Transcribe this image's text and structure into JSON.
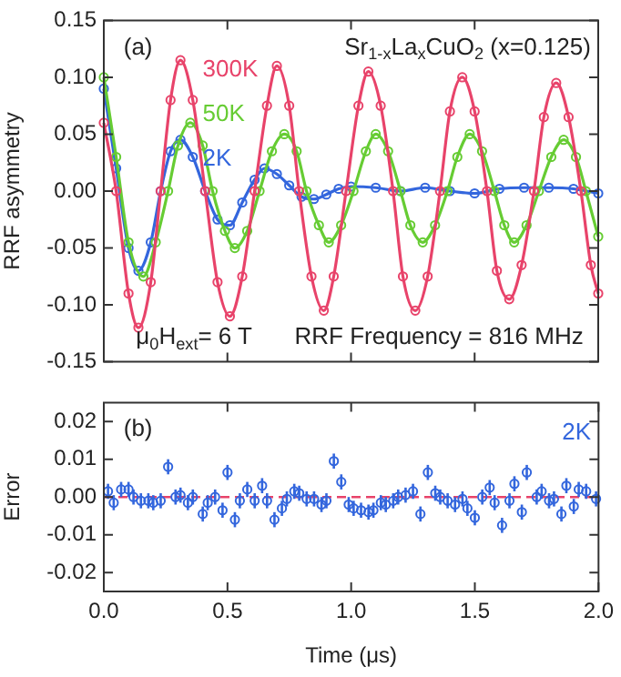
{
  "chart_data": [
    {
      "type": "line",
      "ylabel": "RRF asymmetry",
      "xlim": [
        0,
        2
      ],
      "xticks": [
        0,
        0.5,
        1,
        1.5,
        2
      ],
      "ylim": [
        -0.15,
        0.15
      ],
      "yticks": [
        {
          "value": -0.15,
          "label": "-0.15"
        },
        {
          "value": -0.1,
          "label": "-0.10"
        },
        {
          "value": -0.05,
          "label": "-0.05"
        },
        {
          "value": 0,
          "label": "0.00"
        },
        {
          "value": 0.05,
          "label": "0.05"
        },
        {
          "value": 0.1,
          "label": "0.10"
        },
        {
          "value": 0.15,
          "label": "0.15"
        }
      ],
      "tick_labels": "y",
      "grid": false,
      "legend": "top left",
      "marker": "circle",
      "line_style": "solid",
      "annotations": [
        "(a)",
        "Sr$_{1-x}$La$_{x}$CuO$_{2}$ (x=0.125)",
        "μ$_{0}$H$_{ext}$= 6 T",
        "RRF Frequency = 816 MHz"
      ],
      "series": [
        {
          "name": "300K",
          "color": "#e8436a",
          "x": [
            0,
            0.05,
            0.1,
            0.14,
            0.19,
            0.23,
            0.27,
            0.31,
            0.36,
            0.41,
            0.46,
            0.51,
            0.56,
            0.61,
            0.66,
            0.7,
            0.75,
            0.79,
            0.84,
            0.89,
            0.93,
            0.98,
            1.03,
            1.07,
            1.12,
            1.17,
            1.21,
            1.26,
            1.31,
            1.36,
            1.4,
            1.45,
            1.5,
            1.55,
            1.59,
            1.64,
            1.69,
            1.74,
            1.78,
            1.83,
            1.88,
            1.93,
            1.97,
            2
          ],
          "values": [
            0.06,
            0,
            -0.09,
            -0.12,
            -0.08,
            0,
            0.08,
            0.115,
            0.08,
            0,
            -0.08,
            -0.11,
            -0.075,
            0,
            0.075,
            0.11,
            0.075,
            0,
            -0.075,
            -0.105,
            -0.075,
            0,
            0.075,
            0.105,
            0.075,
            0,
            -0.075,
            -0.105,
            -0.075,
            0,
            0.07,
            0.1,
            0.07,
            0,
            -0.07,
            -0.095,
            -0.065,
            0,
            0.065,
            0.095,
            0.065,
            0,
            -0.065,
            -0.09
          ]
        },
        {
          "name": "50K",
          "color": "#66cc33",
          "x": [
            0,
            0.05,
            0.1,
            0.16,
            0.21,
            0.26,
            0.3,
            0.35,
            0.4,
            0.44,
            0.49,
            0.53,
            0.58,
            0.63,
            0.68,
            0.73,
            0.78,
            0.82,
            0.87,
            0.91,
            0.96,
            1.01,
            1.06,
            1.1,
            1.15,
            1.2,
            1.24,
            1.29,
            1.34,
            1.39,
            1.43,
            1.48,
            1.53,
            1.58,
            1.62,
            1.66,
            1.71,
            1.76,
            1.81,
            1.86,
            1.91,
            1.95,
            2
          ],
          "values": [
            0.1,
            0.03,
            -0.045,
            -0.075,
            -0.045,
            0,
            0.04,
            0.06,
            0.04,
            0,
            -0.035,
            -0.05,
            -0.035,
            0,
            0.035,
            0.05,
            0.035,
            0,
            -0.03,
            -0.045,
            -0.03,
            0,
            0.035,
            0.05,
            0.035,
            0,
            -0.03,
            -0.045,
            -0.03,
            0,
            0.03,
            0.05,
            0.035,
            0,
            -0.03,
            -0.045,
            -0.03,
            0,
            0.03,
            0.045,
            0.03,
            0,
            -0.04
          ]
        },
        {
          "name": "2K",
          "color": "#3366dd",
          "x": [
            0,
            0.05,
            0.1,
            0.14,
            0.19,
            0.23,
            0.27,
            0.31,
            0.36,
            0.41,
            0.46,
            0.51,
            0.56,
            0.61,
            0.65,
            0.7,
            0.75,
            0.8,
            0.85,
            0.9,
            0.95,
            1,
            1.1,
            1.2,
            1.3,
            1.4,
            1.5,
            1.6,
            1.7,
            1.8,
            1.9,
            2
          ],
          "values": [
            0.09,
            0.02,
            -0.05,
            -0.07,
            -0.045,
            0,
            0.035,
            0.045,
            0.03,
            0,
            -0.025,
            -0.03,
            -0.01,
            0.01,
            0.02,
            0.015,
            0.005,
            -0.005,
            -0.007,
            -0.003,
            0.002,
            0.004,
            0.003,
            0,
            0.003,
            0,
            -0.002,
            0.002,
            0.003,
            0.003,
            0.002,
            -0.002
          ]
        }
      ]
    },
    {
      "type": "scatter",
      "xlabel": "Time (μs)",
      "ylabel": "Error",
      "xlim": [
        0,
        2
      ],
      "xticks": [
        {
          "value": 0,
          "label": "0.0"
        },
        0.5,
        {
          "value": 1,
          "label": "1.0"
        },
        1.5,
        {
          "value": 2,
          "label": "2.0"
        }
      ],
      "ylim": [
        -0.025,
        0.025
      ],
      "yticks": [
        {
          "value": -0.02,
          "label": "-0.02"
        },
        {
          "value": -0.01,
          "label": "-0.01"
        },
        {
          "value": 0,
          "label": "0.00"
        },
        {
          "value": 0.01,
          "label": "0.01"
        },
        {
          "value": 0.02,
          "label": "0.02"
        }
      ],
      "grid": false,
      "legend": "top right",
      "marker": "circle",
      "annotations": [
        "(b)"
      ],
      "ref_lines": [
        {
          "axis": "y",
          "value": 0,
          "color": "#e8436a",
          "line_style": "dashed"
        }
      ],
      "series": [
        {
          "name": "2K",
          "color": "#3366dd",
          "x": [
            0.017,
            0.04,
            0.07,
            0.1,
            0.12,
            0.15,
            0.18,
            0.2,
            0.23,
            0.26,
            0.29,
            0.31,
            0.34,
            0.36,
            0.4,
            0.42,
            0.45,
            0.48,
            0.5,
            0.53,
            0.55,
            0.58,
            0.61,
            0.64,
            0.66,
            0.69,
            0.72,
            0.74,
            0.77,
            0.79,
            0.82,
            0.85,
            0.88,
            0.9,
            0.93,
            0.96,
            0.99,
            1.01,
            1.04,
            1.07,
            1.09,
            1.12,
            1.14,
            1.17,
            1.19,
            1.22,
            1.25,
            1.28,
            1.31,
            1.34,
            1.36,
            1.39,
            1.42,
            1.45,
            1.47,
            1.5,
            1.53,
            1.56,
            1.58,
            1.61,
            1.64,
            1.66,
            1.69,
            1.71,
            1.75,
            1.77,
            1.8,
            1.82,
            1.85,
            1.87,
            1.9,
            1.92,
            1.95,
            1.99
          ],
          "values": [
            0.0015,
            -0.0015,
            0.002,
            0.002,
            0,
            -0.001,
            -0.001,
            -0.0015,
            -0.001,
            0.008,
            0,
            0.0005,
            -0.0015,
            0,
            -0.0045,
            -0.0015,
            0,
            -0.0035,
            0.0065,
            -0.006,
            -0.001,
            0.002,
            -0.001,
            0.003,
            -0.001,
            -0.006,
            -0.003,
            -0.0005,
            0.0015,
            0.001,
            -0.0005,
            -0.0005,
            -0.002,
            -0.001,
            0.0095,
            0.004,
            -0.002,
            -0.003,
            -0.0035,
            -0.004,
            -0.0035,
            -0.0015,
            -0.002,
            -0.001,
            0,
            0.0005,
            0.0015,
            -0.0045,
            0.0065,
            0.001,
            0,
            -0.001,
            -0.002,
            -0.0005,
            -0.003,
            -0.0055,
            0,
            0.0025,
            -0.0015,
            -0.0075,
            -0.001,
            0.0035,
            -0.004,
            0.0065,
            0,
            0.0015,
            -0.001,
            -0.0005,
            -0.0045,
            0.003,
            -0.0025,
            0.002,
            0.0015,
            -0.0005
          ],
          "errors": [
            0.002,
            0.002,
            0.002,
            0.002,
            0.002,
            0.002,
            0.002,
            0.002,
            0.002,
            0.002,
            0.002,
            0.002,
            0.002,
            0.002,
            0.002,
            0.002,
            0.002,
            0.002,
            0.002,
            0.002,
            0.002,
            0.002,
            0.002,
            0.002,
            0.002,
            0.002,
            0.002,
            0.002,
            0.002,
            0.002,
            0.002,
            0.002,
            0.002,
            0.002,
            0.002,
            0.002,
            0.002,
            0.002,
            0.002,
            0.002,
            0.002,
            0.002,
            0.002,
            0.002,
            0.002,
            0.002,
            0.002,
            0.002,
            0.002,
            0.002,
            0.002,
            0.002,
            0.002,
            0.002,
            0.002,
            0.002,
            0.002,
            0.002,
            0.002,
            0.002,
            0.002,
            0.002,
            0.002,
            0.002,
            0.002,
            0.002,
            0.002,
            0.002,
            0.002,
            0.002,
            0.002,
            0.002,
            0.002,
            0.002
          ]
        }
      ]
    }
  ]
}
